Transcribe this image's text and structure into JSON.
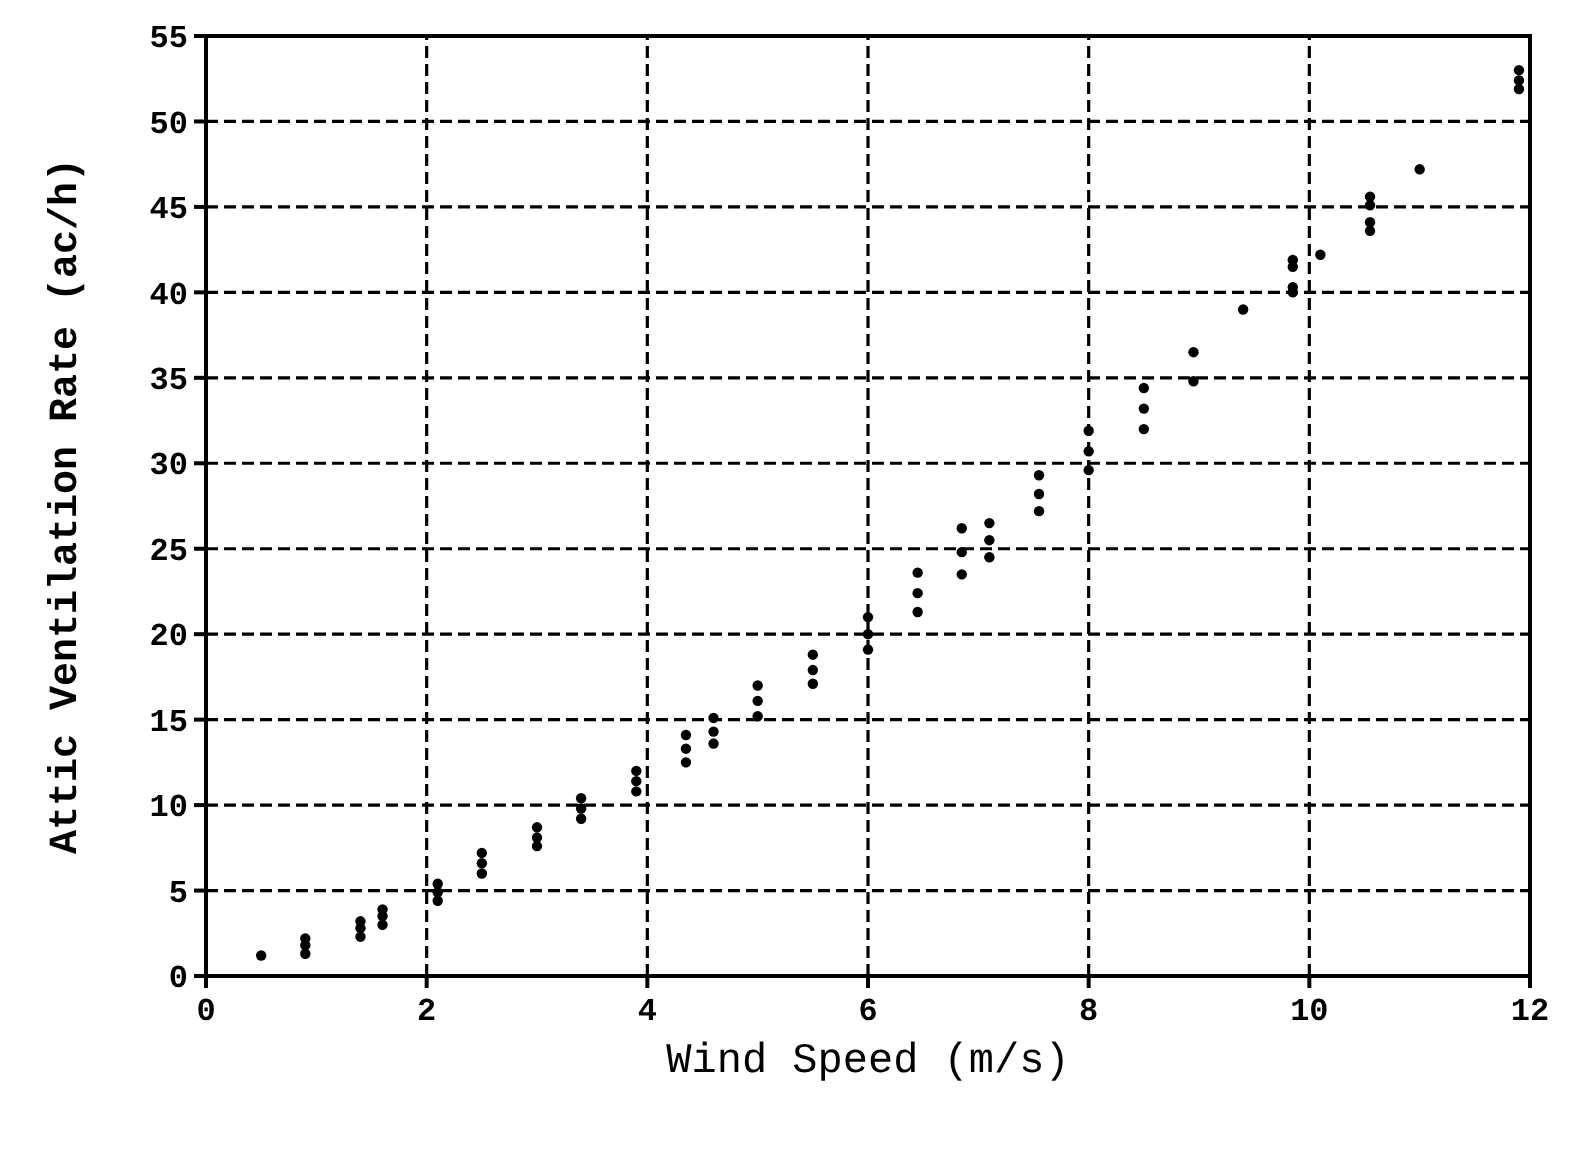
{
  "chart_data": {
    "type": "scatter",
    "xlabel": "Wind Speed (m/s)",
    "ylabel": "Attic Ventilation Rate (ac/h)",
    "x": [
      0.5,
      0.9,
      0.9,
      0.9,
      1.4,
      1.4,
      1.4,
      1.6,
      1.6,
      1.6,
      2.1,
      2.1,
      2.1,
      2.5,
      2.5,
      2.5,
      3.0,
      3.0,
      3.0,
      3.4,
      3.4,
      3.4,
      3.9,
      3.9,
      3.9,
      4.35,
      4.35,
      4.35,
      4.6,
      4.6,
      4.6,
      5.0,
      5.0,
      5.0,
      5.5,
      5.5,
      5.5,
      6.0,
      6.0,
      6.0,
      6.45,
      6.45,
      6.45,
      6.85,
      6.85,
      6.85,
      7.1,
      7.1,
      7.1,
      7.55,
      7.55,
      7.55,
      8.0,
      8.0,
      8.0,
      8.5,
      8.5,
      8.5,
      8.95,
      8.95,
      9.4,
      9.85,
      9.85,
      9.85,
      9.85,
      10.1,
      10.55,
      10.55,
      10.55,
      10.55,
      11.0,
      11.9,
      11.9,
      11.9
    ],
    "values": [
      1.2,
      1.3,
      1.8,
      2.2,
      2.3,
      2.8,
      3.2,
      3.0,
      3.5,
      3.9,
      4.4,
      4.9,
      5.4,
      6.0,
      6.6,
      7.2,
      7.6,
      8.1,
      8.7,
      9.2,
      9.8,
      10.4,
      10.8,
      11.4,
      12.0,
      12.5,
      13.3,
      14.1,
      13.6,
      14.3,
      15.1,
      15.2,
      16.1,
      17.0,
      17.1,
      17.9,
      18.8,
      19.1,
      20.0,
      21.0,
      21.3,
      22.4,
      23.6,
      23.5,
      24.8,
      26.2,
      24.5,
      25.5,
      26.5,
      27.2,
      28.2,
      29.3,
      29.6,
      30.7,
      31.9,
      32.0,
      33.2,
      34.4,
      34.8,
      36.5,
      39.0,
      40.0,
      40.3,
      41.5,
      41.9,
      42.2,
      43.6,
      44.1,
      45.1,
      45.6,
      47.2,
      51.9,
      52.4,
      53.0
    ],
    "color": "#000000",
    "marker": "circle",
    "grid": true,
    "xlim": [
      0,
      12
    ],
    "xticks": [
      0,
      2,
      4,
      6,
      8,
      10,
      12
    ],
    "ylim": [
      0,
      55
    ],
    "yticks": [
      0,
      5,
      10,
      15,
      20,
      25,
      30,
      35,
      40,
      45,
      50,
      55
    ]
  }
}
